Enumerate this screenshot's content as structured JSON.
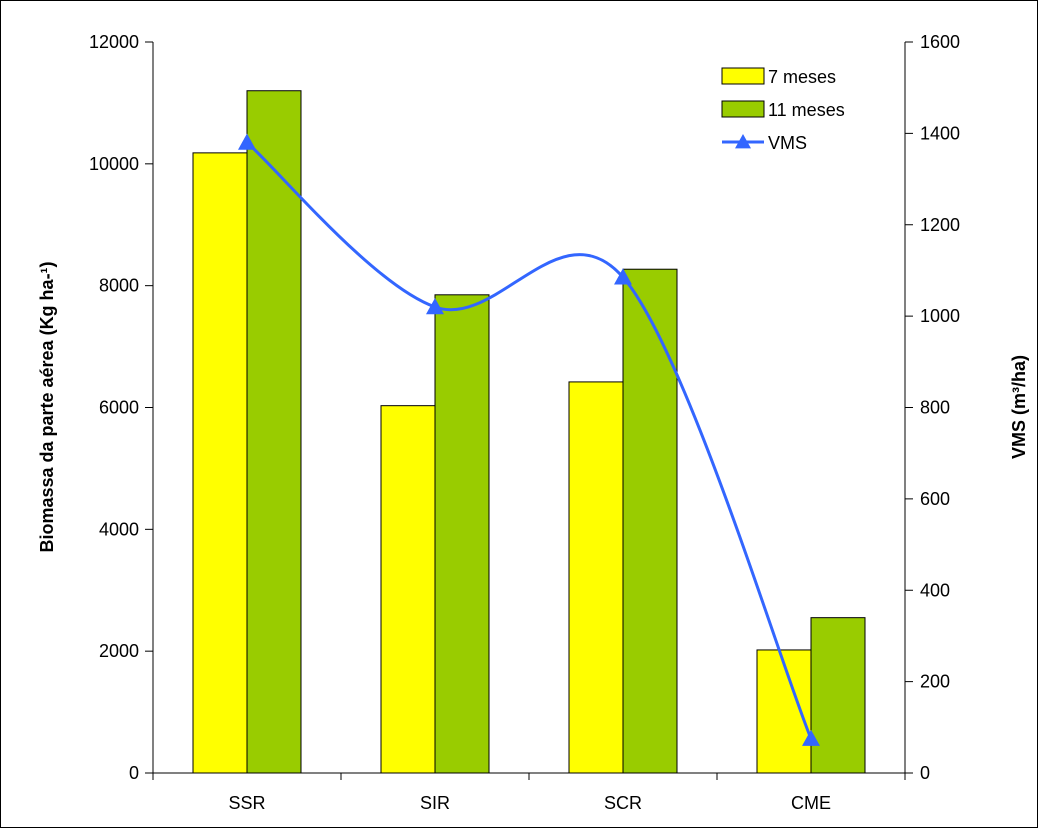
{
  "chart_data": {
    "type": "bar",
    "categories": [
      "SSR",
      "SIR",
      "SCR",
      "CME"
    ],
    "series": [
      {
        "name": "7 meses",
        "type": "bar",
        "axis": "left",
        "color": "#ffff00",
        "values": [
          10180,
          6030,
          6420,
          2020
        ]
      },
      {
        "name": "11 meses",
        "type": "bar",
        "axis": "left",
        "color": "#99cc00",
        "values": [
          11200,
          7850,
          8270,
          2550
        ]
      },
      {
        "name": "VMS",
        "type": "line",
        "axis": "right",
        "color": "#3366ff",
        "marker": "triangle",
        "smooth": true,
        "values": [
          1380,
          1020,
          1085,
          75
        ]
      }
    ],
    "ylabel": "Biomassa da parte aérea (Kg ha-¹)",
    "y2label": "VMS (m³/ha)",
    "ylim": [
      0,
      12000
    ],
    "y2lim": [
      0,
      1600
    ],
    "yticks": [
      "0",
      "2000",
      "4000",
      "6000",
      "8000",
      "10000",
      "12000"
    ],
    "y2ticks": [
      "0",
      "200",
      "400",
      "600",
      "800",
      "1000",
      "1200",
      "1400",
      "1600"
    ],
    "grid": false,
    "legend_position": "top-right"
  }
}
